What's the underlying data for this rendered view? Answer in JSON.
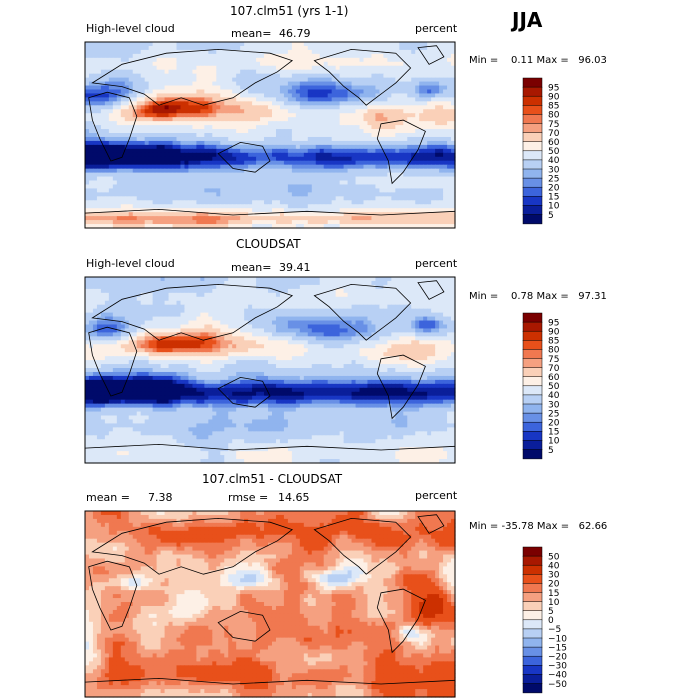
{
  "season": "JJA",
  "panels": [
    {
      "title": "107.clm51 (yrs 1-1)",
      "left_label": "High-level cloud",
      "mean_text": "mean=",
      "mean_value": "46.79",
      "right_label": "percent",
      "min_max": "Min =    0.11 Max =   96.03"
    },
    {
      "title": "CLOUDSAT",
      "left_label": "High-level cloud",
      "mean_text": "mean=",
      "mean_value": "39.41",
      "right_label": "percent",
      "min_max": "Min =    0.78 Max =   97.31"
    },
    {
      "title": "107.clm51 - CLOUDSAT",
      "left_label": "mean =",
      "left_value": "7.38",
      "mean_text": "rmse =",
      "mean_value": "14.65",
      "right_label": "percent",
      "min_max": "Min = -35.78 Max =   62.66"
    }
  ],
  "colorbars": [
    {
      "labels": [
        "95",
        "90",
        "85",
        "80",
        "75",
        "70",
        "60",
        "50",
        "40",
        "30",
        "25",
        "20",
        "15",
        "10",
        "5"
      ],
      "colors": [
        "#7a0000",
        "#a81800",
        "#cc3000",
        "#e8501a",
        "#f07850",
        "#f5a080",
        "#fad0b8",
        "#fdf0e6",
        "#dce8f8",
        "#b8d0f4",
        "#90b4ee",
        "#6890e6",
        "#3c64dc",
        "#1836c4",
        "#0a1e9a",
        "#000a6a"
      ]
    },
    {
      "labels": [
        "95",
        "90",
        "85",
        "80",
        "75",
        "70",
        "60",
        "50",
        "40",
        "30",
        "25",
        "20",
        "15",
        "10",
        "5"
      ],
      "colors": [
        "#7a0000",
        "#a81800",
        "#cc3000",
        "#e8501a",
        "#f07850",
        "#f5a080",
        "#fad0b8",
        "#fdf0e6",
        "#dce8f8",
        "#b8d0f4",
        "#90b4ee",
        "#6890e6",
        "#3c64dc",
        "#1836c4",
        "#0a1e9a",
        "#000a6a"
      ]
    },
    {
      "labels": [
        "50",
        "40",
        "30",
        "20",
        "15",
        "10",
        "5",
        "0",
        "−5",
        "−10",
        "−15",
        "−20",
        "−30",
        "−40",
        "−50"
      ],
      "colors": [
        "#7a0000",
        "#a81800",
        "#cc3000",
        "#e8501a",
        "#f07850",
        "#f5a080",
        "#fad0b8",
        "#fdf0e6",
        "#dce8f8",
        "#b8d0f4",
        "#90b4ee",
        "#6890e6",
        "#3c64dc",
        "#1836c4",
        "#0a1e9a",
        "#000a6a"
      ]
    }
  ],
  "chart_data": [
    {
      "type": "heatmap",
      "title": "107.clm51 (yrs 1-1)",
      "variable": "High-level cloud",
      "units": "percent",
      "mean": 46.79,
      "min": 0.11,
      "max": 96.03,
      "levels": [
        5,
        10,
        15,
        20,
        25,
        30,
        40,
        50,
        60,
        70,
        75,
        80,
        85,
        90,
        95
      ]
    },
    {
      "type": "heatmap",
      "title": "CLOUDSAT",
      "variable": "High-level cloud",
      "units": "percent",
      "mean": 39.41,
      "min": 0.78,
      "max": 97.31,
      "levels": [
        5,
        10,
        15,
        20,
        25,
        30,
        40,
        50,
        60,
        70,
        75,
        80,
        85,
        90,
        95
      ]
    },
    {
      "type": "heatmap",
      "title": "107.clm51 - CLOUDSAT",
      "units": "percent",
      "mean": 7.38,
      "rmse": 14.65,
      "min": -35.78,
      "max": 62.66,
      "levels": [
        -50,
        -40,
        -30,
        -20,
        -15,
        -10,
        -5,
        0,
        5,
        10,
        15,
        20,
        30,
        40,
        50
      ]
    }
  ]
}
